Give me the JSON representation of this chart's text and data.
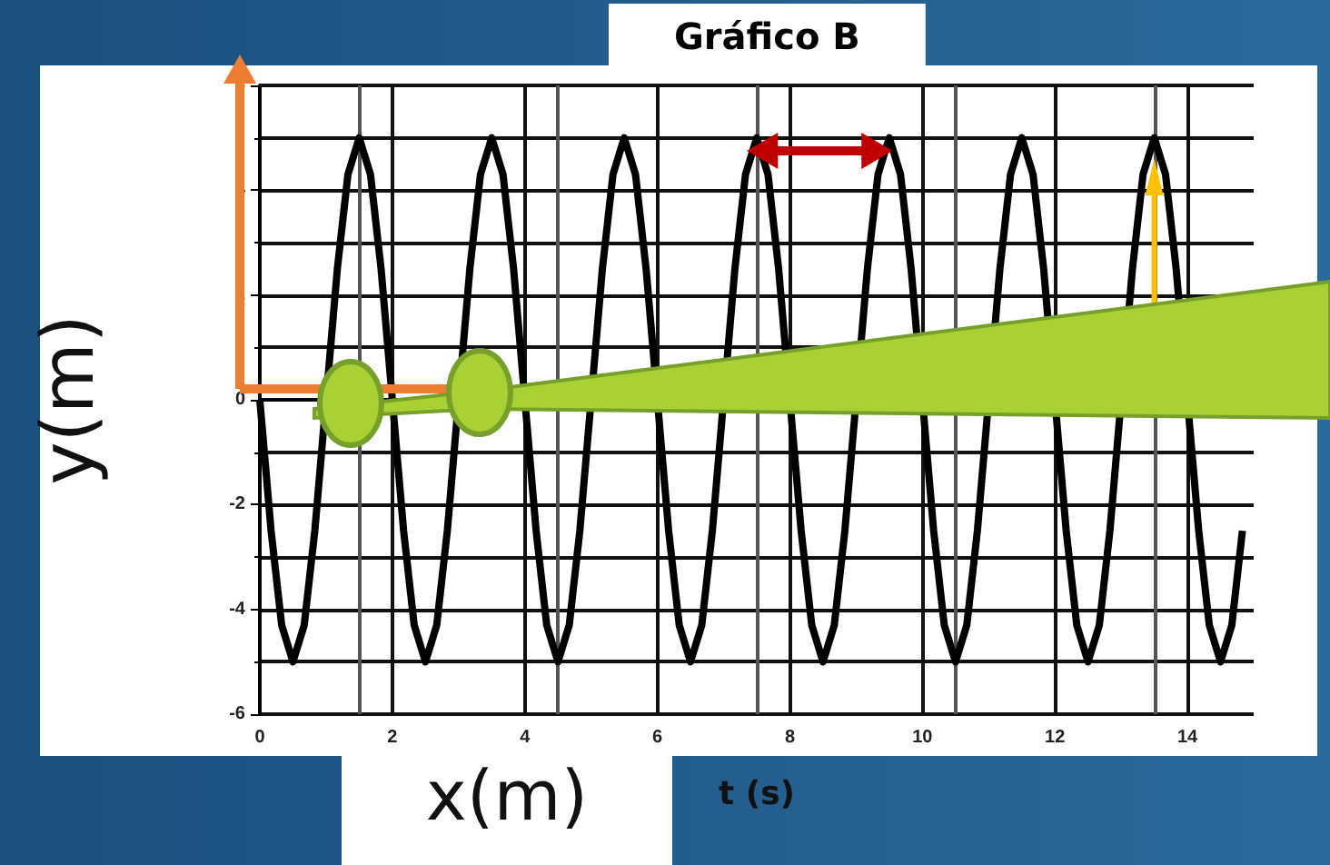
{
  "chart_data": {
    "type": "line",
    "title": "Gráfico B",
    "xlabel": "t (s)",
    "ylabel": "y(m)",
    "annotations": [
      "x(m)"
    ],
    "x": [
      0,
      0.17,
      0.33,
      0.5,
      0.67,
      0.83,
      1.17,
      1.33,
      1.5,
      1.67,
      1.83,
      2.17,
      2.33,
      2.5,
      2.67,
      2.83,
      3.17,
      3.33,
      3.5,
      3.67,
      3.83,
      4.17,
      4.33,
      4.5,
      4.67,
      4.83,
      5.17,
      5.33,
      5.5,
      5.67,
      5.83,
      6.17,
      6.33,
      6.5,
      6.67,
      6.83,
      7.17,
      7.33,
      7.5,
      7.67,
      7.83,
      8.17,
      8.33,
      8.5,
      8.67,
      8.83,
      9.17,
      9.33,
      9.5,
      9.67,
      9.83,
      10.17,
      10.33,
      10.5,
      10.67,
      10.83,
      11.17,
      11.33,
      11.5,
      11.67,
      11.83,
      12.17,
      12.33,
      12.5,
      12.67,
      12.83,
      13.17,
      13.33,
      13.5,
      13.67,
      13.83,
      14.17,
      14.33,
      14.5,
      14.67,
      14.83
    ],
    "series": [
      {
        "color": "#000000",
        "values": [
          0,
          -2.5,
          -4.3,
          -5,
          -4.3,
          -2.5,
          2.5,
          4.3,
          5,
          4.3,
          2.5,
          -2.5,
          -4.3,
          -5,
          -4.3,
          -2.5,
          2.5,
          4.3,
          5,
          4.3,
          2.5,
          -2.5,
          -4.3,
          -5,
          -4.3,
          -2.5,
          2.5,
          4.3,
          5,
          4.3,
          2.5,
          -2.5,
          -4.3,
          -5,
          -4.3,
          -2.5,
          2.5,
          4.3,
          5,
          4.3,
          2.5,
          -2.5,
          -4.3,
          -5,
          -4.3,
          -2.5,
          2.5,
          4.3,
          5,
          4.3,
          2.5,
          -2.5,
          -4.3,
          -5,
          -4.3,
          -2.5,
          2.5,
          4.3,
          5,
          4.3,
          2.5,
          -2.5,
          -4.3,
          -5,
          -4.3,
          -2.5,
          2.5,
          4.3,
          5,
          4.3,
          2.5,
          -2.5,
          -4.3,
          -5,
          -4.3,
          -2.5
        ]
      }
    ],
    "xlim": [
      0,
      15
    ],
    "xticks": [
      0,
      2,
      4,
      6,
      8,
      10,
      12,
      14
    ],
    "ylim": [
      -6,
      6
    ],
    "yticks": [
      -6,
      -4,
      -2,
      0,
      2,
      4,
      6
    ],
    "grid": true,
    "marker": "none",
    "line_style": "solid"
  }
}
